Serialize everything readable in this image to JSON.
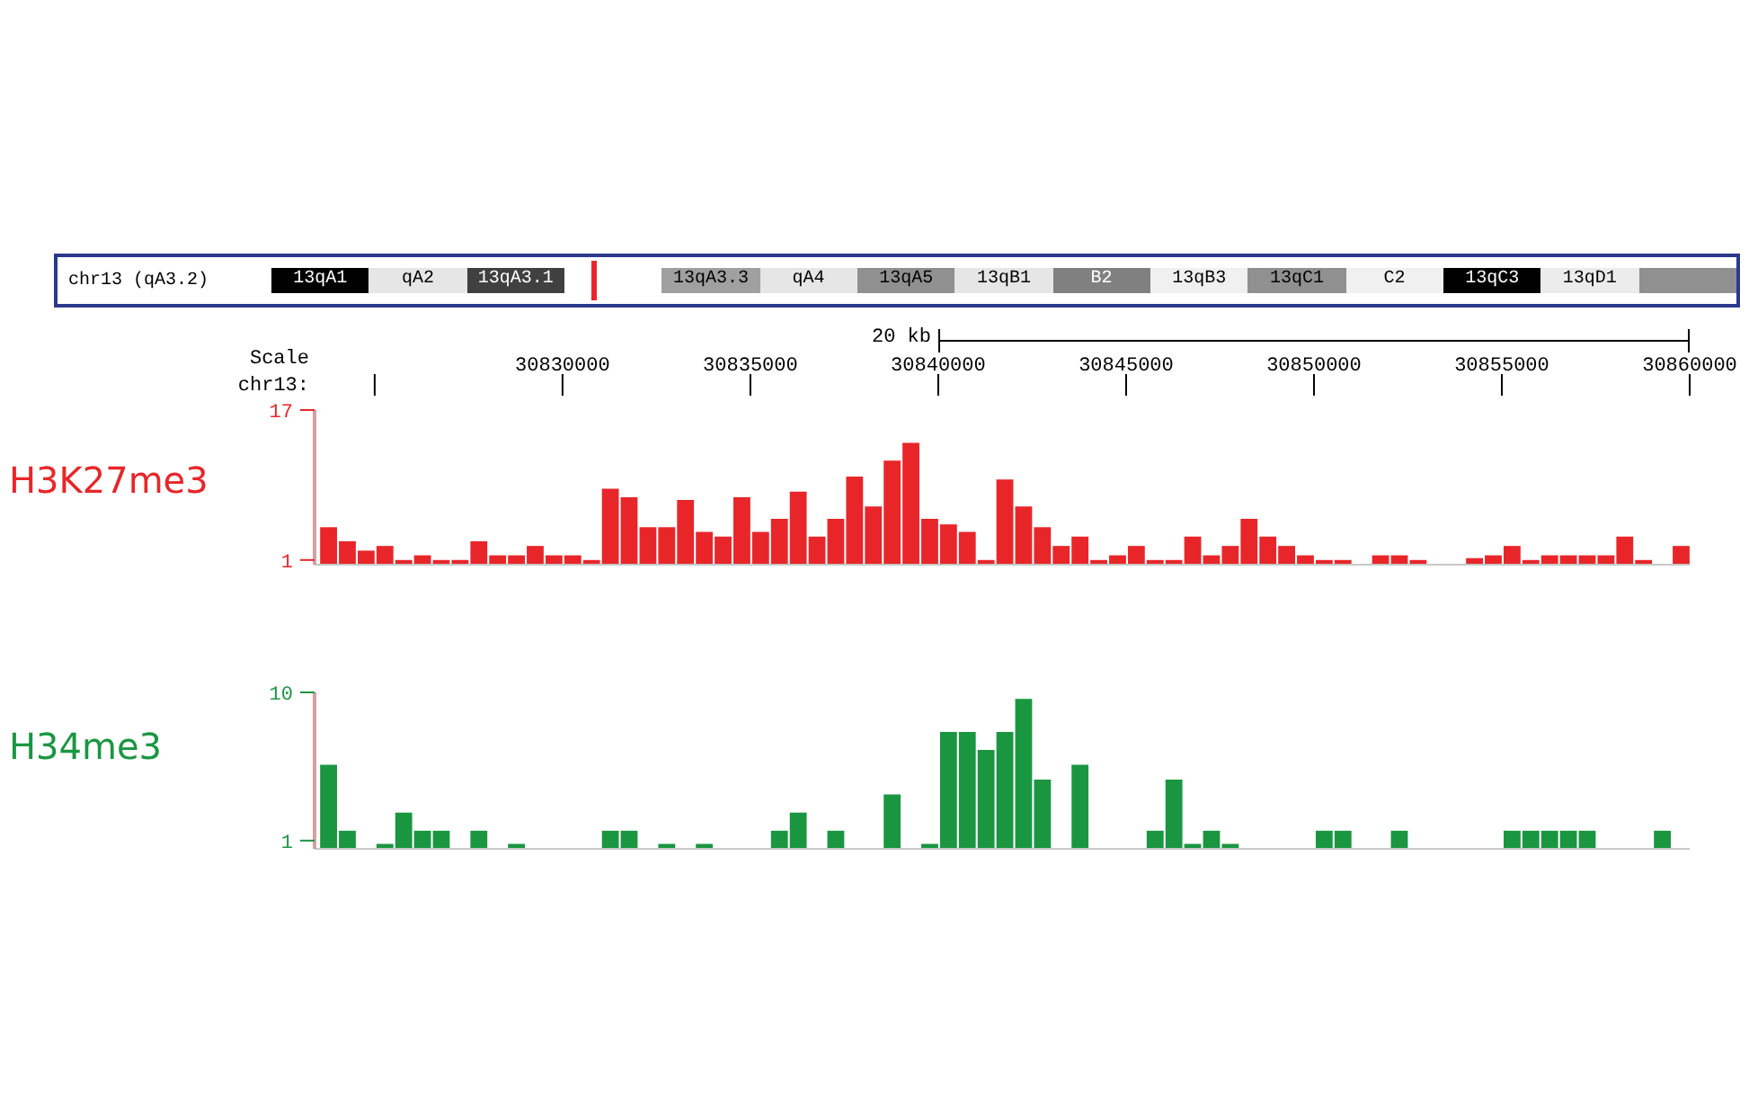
{
  "chart_data": [
    {
      "type": "other",
      "title": "chr13 (qA3.2)",
      "categories": [
        "13qA1",
        "qA2",
        "13qA3.1",
        null,
        "13qA3.3",
        "qA4",
        "13qA5",
        "13qB1",
        "B2",
        "13qB3",
        "13qC1",
        "C2",
        "13qC3",
        "13qD1",
        null
      ],
      "colors": [
        "#000000",
        "#e6e6e6",
        "#404040",
        "#ffffff",
        "#a0a0a0",
        "#e6e6e6",
        "#909090",
        "#e6e6e6",
        "#808080",
        "#f0f0f0",
        "#909090",
        "#f0f0f0",
        "#000000",
        "#ececec",
        "#909090"
      ]
    },
    {
      "type": "histogram",
      "xlabel": "chr13:",
      "annotations": [
        "Scale",
        "20 kb"
      ],
      "xlim": [
        30823400,
        30860000
      ],
      "xticks": [
        {
          "value": 30825000,
          "label": null
        },
        30830000,
        30835000,
        30840000,
        30845000,
        30850000,
        30855000,
        30860000
      ],
      "ylim": [
        0.5,
        17
      ],
      "yticks": [
        1,
        17
      ],
      "bins": [
        30823500,
        30824000,
        30824500,
        30825000,
        30825500,
        30826000,
        30826500,
        30827000,
        30827500,
        30828000,
        30828500,
        30829000,
        30829500,
        30830000,
        30830500,
        30831000,
        30831500,
        30832000,
        30832500,
        30833000,
        30833500,
        30834000,
        30834500,
        30835000,
        30835500,
        30836000,
        30836500,
        30837000,
        30837500,
        30838000,
        30838500,
        30839000,
        30839500,
        30840000,
        30840500,
        30841000,
        30841500,
        30842000,
        30842500,
        30843000,
        30843500,
        30844000,
        30844500,
        30845000,
        30845500,
        30846000,
        30846500,
        30847000,
        30847500,
        30848000,
        30848500,
        30849000,
        30849500,
        30850000,
        30850500,
        30851000,
        30851500,
        30852000,
        30852500,
        30853000,
        30853500,
        30854000,
        30854500,
        30855000,
        30855500,
        30856000,
        30856500,
        30857000,
        30857500,
        30858000,
        30858500,
        30859000,
        30859500,
        30860000
      ],
      "series": [
        {
          "name": "H3K27me3",
          "color": "#e8262a",
          "values": [
            4.5,
            3,
            2,
            2.5,
            1,
            1.5,
            1,
            1,
            3,
            1.5,
            1.5,
            2.5,
            1.5,
            1.5,
            1,
            8.6,
            7.7,
            4.5,
            4.5,
            7.4,
            4,
            3.5,
            7.7,
            4,
            5.4,
            8.3,
            3.5,
            5.4,
            9.9,
            6.7,
            11.6,
            13.5,
            5.4,
            4.8,
            4,
            1,
            9.6,
            6.7,
            4.5,
            2.5,
            3.5,
            1,
            1.5,
            2.5,
            1,
            1,
            3.5,
            1.5,
            2.5,
            5.4,
            3.5,
            2.5,
            1.5,
            1,
            1,
            null,
            1.5,
            1.5,
            1,
            null,
            null,
            1.2,
            1.5,
            2.5,
            1,
            1.5,
            1.5,
            1.5,
            1.5,
            3.5,
            1,
            null,
            2.5
          ]
        }
      ]
    },
    {
      "type": "histogram",
      "tick_labels": "y",
      "xlim": [
        30823400,
        30860000
      ],
      "ylim": [
        0.5,
        10
      ],
      "yticks": [
        1,
        10
      ],
      "bins": [
        30823500,
        30824000,
        30824500,
        30825000,
        30825500,
        30826000,
        30826500,
        30827000,
        30827500,
        30828000,
        30828500,
        30829000,
        30829500,
        30830000,
        30830500,
        30831000,
        30831500,
        30832000,
        30832500,
        30833000,
        30833500,
        30834000,
        30834500,
        30835000,
        30835500,
        30836000,
        30836500,
        30837000,
        30837500,
        30838000,
        30838500,
        30839000,
        30839500,
        30840000,
        30840500,
        30841000,
        30841500,
        30842000,
        30842500,
        30843000,
        30843500,
        30844000,
        30844500,
        30845000,
        30845500,
        30846000,
        30846500,
        30847000,
        30847500,
        30848000,
        30848500,
        30849000,
        30849500,
        30850000,
        30850500,
        30851000,
        30851500,
        30852000,
        30852500,
        30853000,
        30853500,
        30854000,
        30854500,
        30855000,
        30855500,
        30856000,
        30856500,
        30857000,
        30857500,
        30858000,
        30858500,
        30859000,
        30859500,
        30860000
      ],
      "series": [
        {
          "name": "H34me3",
          "color": "#1a9641",
          "values": [
            5.6,
            1.6,
            null,
            0.8,
            2.7,
            1.6,
            1.6,
            null,
            1.6,
            null,
            0.8,
            null,
            null,
            null,
            null,
            1.6,
            1.6,
            null,
            0.8,
            null,
            0.8,
            null,
            null,
            null,
            1.6,
            2.7,
            null,
            1.6,
            null,
            null,
            3.8,
            null,
            0.8,
            7.6,
            7.6,
            6.5,
            7.6,
            9.6,
            4.7,
            null,
            5.6,
            null,
            null,
            null,
            1.6,
            4.7,
            0.8,
            1.6,
            0.8,
            null,
            null,
            null,
            null,
            1.6,
            1.6,
            null,
            null,
            1.6,
            null,
            null,
            null,
            null,
            null,
            1.6,
            1.6,
            1.6,
            1.6,
            1.6,
            null,
            null,
            null,
            1.6,
            null
          ]
        }
      ]
    }
  ]
}
